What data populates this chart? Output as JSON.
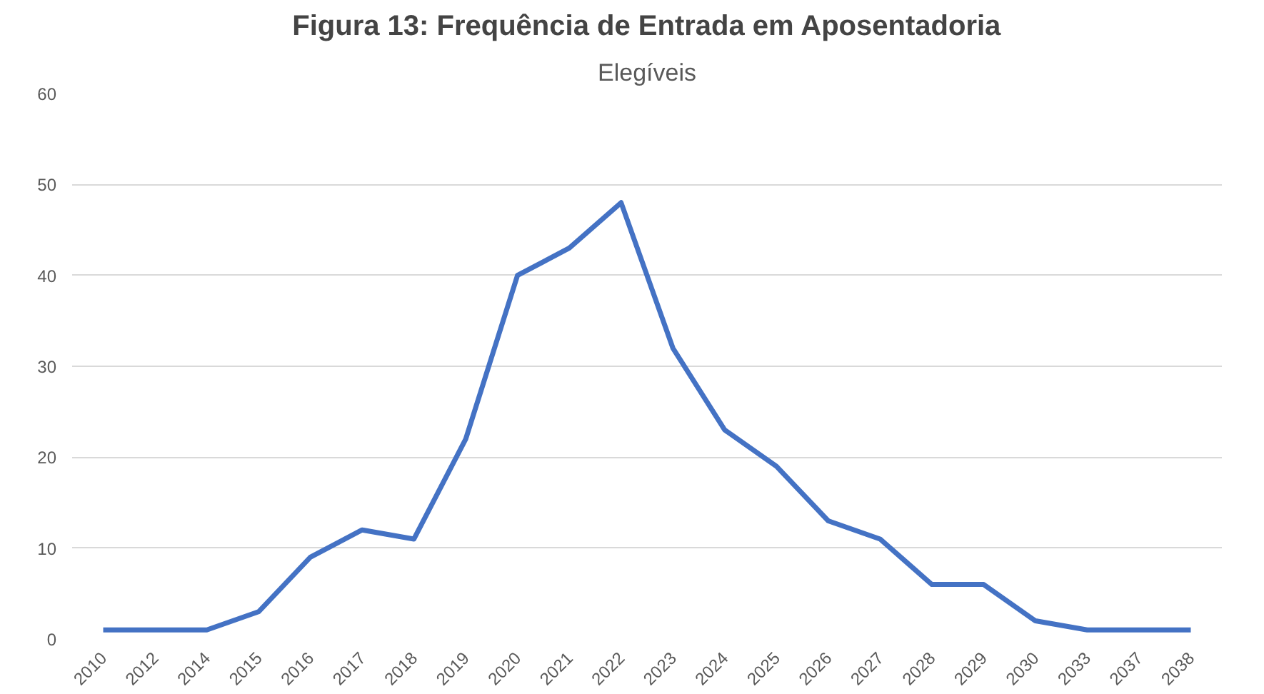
{
  "chart_data": {
    "type": "line",
    "title": "Elegíveis",
    "annotations": [
      "Figura 13: Frequência de Entrada em Aposentadoria"
    ],
    "categories": [
      "2010",
      "2012",
      "2014",
      "2015",
      "2016",
      "2017",
      "2018",
      "2019",
      "2020",
      "2021",
      "2022",
      "2023",
      "2024",
      "2025",
      "2026",
      "2027",
      "2028",
      "2029",
      "2030",
      "2033",
      "2037",
      "2038"
    ],
    "series": [
      {
        "color": "#4472c4",
        "values": [
          1,
          1,
          1,
          3,
          9,
          12,
          11,
          22,
          40,
          43,
          48,
          32,
          23,
          19,
          13,
          11,
          6,
          6,
          2,
          1,
          1,
          1
        ]
      }
    ],
    "ylim": [
      0,
      60
    ],
    "yticks": [
      0,
      10,
      20,
      30,
      40,
      50,
      60
    ],
    "grid": "y",
    "marker": "none",
    "line_style": "solid"
  }
}
